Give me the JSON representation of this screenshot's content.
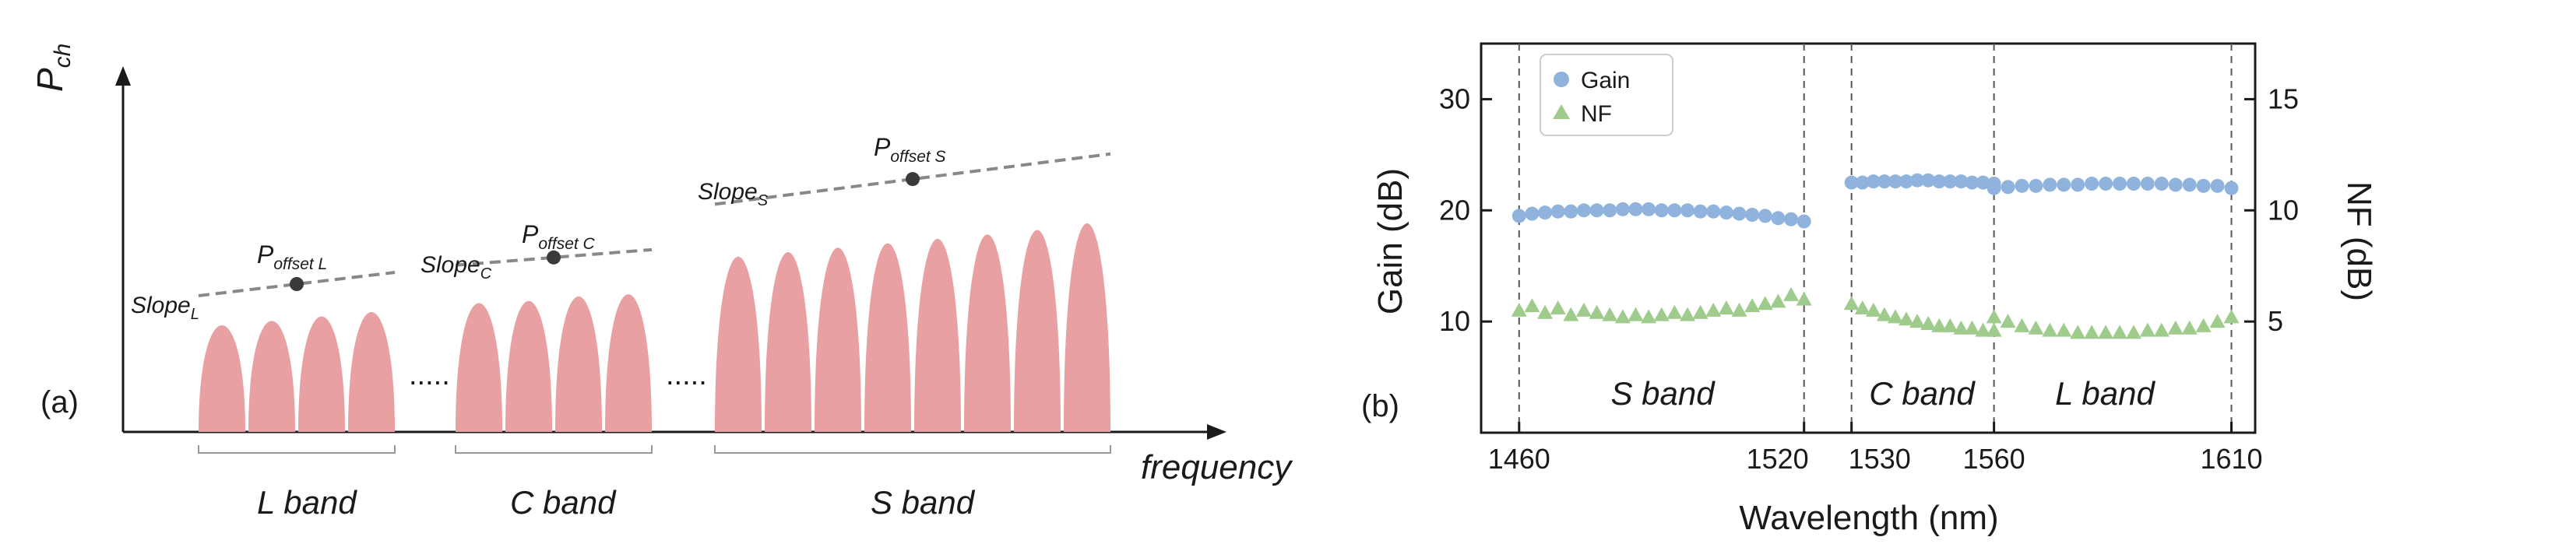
{
  "panel_a": {
    "label": "(a)",
    "y_axis_symbol": "P",
    "y_axis_sub": "ch",
    "x_axis_label": "frequency",
    "gap_dots": ".....",
    "bands": [
      {
        "name": "L band",
        "slope": "Slope",
        "slope_sub": "L",
        "offset": "P",
        "offset_sub": "offset L",
        "channels": 4,
        "heights": [
          0.47,
          0.49,
          0.51,
          0.53
        ]
      },
      {
        "name": "C  band",
        "slope": "Slope",
        "slope_sub": "C",
        "offset": "P",
        "offset_sub": "offset C",
        "channels": 4,
        "heights": [
          0.57,
          0.58,
          0.6,
          0.61
        ]
      },
      {
        "name": "S band",
        "slope": "Slope",
        "slope_sub": "S",
        "offset": "P",
        "offset_sub": "offset S",
        "channels": 8,
        "heights": [
          0.78,
          0.8,
          0.82,
          0.84,
          0.86,
          0.88,
          0.9,
          0.93
        ]
      }
    ],
    "colors": {
      "channel": "#e8a0a2",
      "slope_line": "#888888",
      "dot": "#3a3a3a"
    }
  },
  "panel_b": {
    "label": "(b)",
    "band_labels": [
      "S band",
      "C band",
      "L band"
    ],
    "colors": {
      "gain": "#8fb3dc",
      "nf": "#9fcc8c"
    }
  },
  "chart_data": {
    "type": "scatter",
    "xlabel": "Wavelength (nm)",
    "ylabel": "Gain (dB)",
    "y2label": "NF (dB)",
    "x_ticks": [
      "1460",
      "1520",
      "1530",
      "1560",
      "1610"
    ],
    "y_ticks": [
      "10",
      "20",
      "30"
    ],
    "y2_ticks": [
      "5",
      "10",
      "15"
    ],
    "ylim": [
      0,
      35
    ],
    "y2lim": [
      0,
      17.5
    ],
    "band_boundaries": [
      1460,
      1520,
      1530,
      1560,
      1610
    ],
    "legend": "top-left",
    "series": [
      {
        "name": "Gain",
        "axis": "left",
        "marker": "circle",
        "segments": [
          {
            "x_start": 1460,
            "x_end": 1520,
            "values": [
              19.5,
              19.7,
              19.8,
              19.9,
              19.9,
              20.0,
              20.0,
              20.0,
              20.1,
              20.1,
              20.1,
              20.0,
              20.0,
              20.0,
              19.9,
              19.9,
              19.8,
              19.7,
              19.6,
              19.5,
              19.3,
              19.2,
              19.0
            ]
          },
          {
            "x_start": 1530,
            "x_end": 1560,
            "values": [
              22.5,
              22.5,
              22.6,
              22.6,
              22.6,
              22.6,
              22.7,
              22.7,
              22.6,
              22.6,
              22.6,
              22.5,
              22.5,
              22.4
            ]
          },
          {
            "x_start": 1560,
            "x_end": 1610,
            "values": [
              22.0,
              22.1,
              22.2,
              22.2,
              22.3,
              22.3,
              22.3,
              22.4,
              22.4,
              22.4,
              22.4,
              22.4,
              22.4,
              22.3,
              22.3,
              22.2,
              22.2,
              22.0
            ]
          }
        ]
      },
      {
        "name": "NF",
        "axis": "right",
        "marker": "triangle",
        "segments": [
          {
            "x_start": 1460,
            "x_end": 1520,
            "values": [
              5.5,
              5.7,
              5.4,
              5.6,
              5.3,
              5.5,
              5.4,
              5.3,
              5.2,
              5.3,
              5.2,
              5.3,
              5.4,
              5.3,
              5.4,
              5.5,
              5.6,
              5.5,
              5.7,
              5.8,
              5.9,
              6.2,
              6.0
            ]
          },
          {
            "x_start": 1530,
            "x_end": 1560,
            "values": [
              5.8,
              5.6,
              5.5,
              5.3,
              5.2,
              5.1,
              5.0,
              4.9,
              4.8,
              4.8,
              4.7,
              4.7,
              4.6,
              4.6
            ]
          },
          {
            "x_start": 1560,
            "x_end": 1610,
            "values": [
              5.2,
              5.0,
              4.8,
              4.7,
              4.6,
              4.6,
              4.5,
              4.5,
              4.5,
              4.5,
              4.5,
              4.6,
              4.6,
              4.7,
              4.7,
              4.8,
              5.0,
              5.2
            ]
          }
        ]
      }
    ]
  }
}
